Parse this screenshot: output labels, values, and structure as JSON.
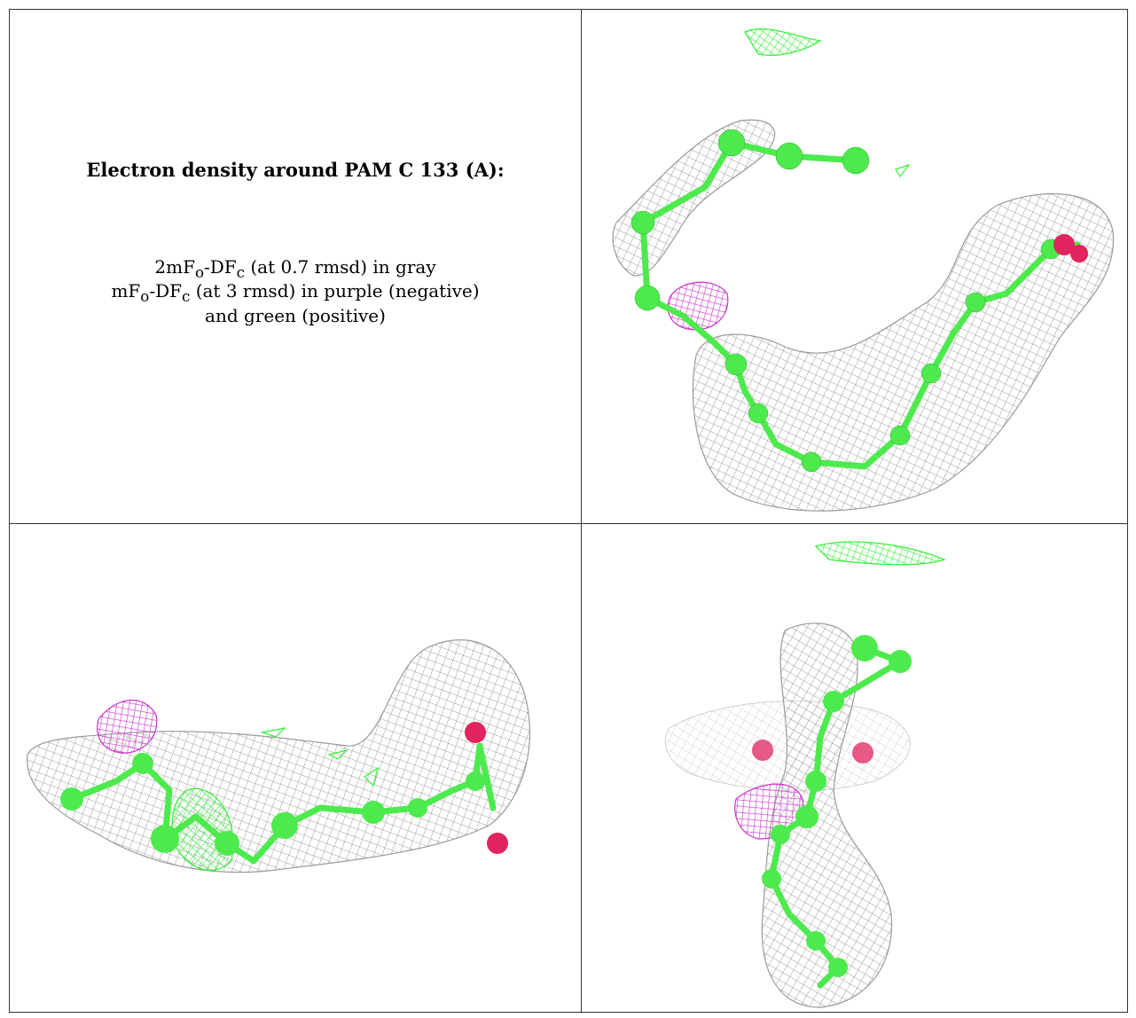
{
  "caption": {
    "title": "Electron density around PAM C 133 (A):",
    "line1": "2mFo-DFc (at 0.7 rmsd) in gray",
    "line2": "mFo-DFc (at 3 rmsd) in purple (negative)",
    "line3": "and green (positive)"
  },
  "colors": {
    "gray_mesh": "#9a9a9a",
    "negative_mesh": "#cc33cc",
    "positive_mesh": "#33ee33",
    "carbon_atom": "#4dea4d",
    "oxygen_atom": "#e0245e",
    "border": "#333333"
  },
  "panels": [
    {
      "view": "view-1",
      "content": "ligand-density"
    },
    {
      "view": "view-2",
      "content": "ligand-density"
    },
    {
      "view": "view-3",
      "content": "ligand-density"
    }
  ]
}
